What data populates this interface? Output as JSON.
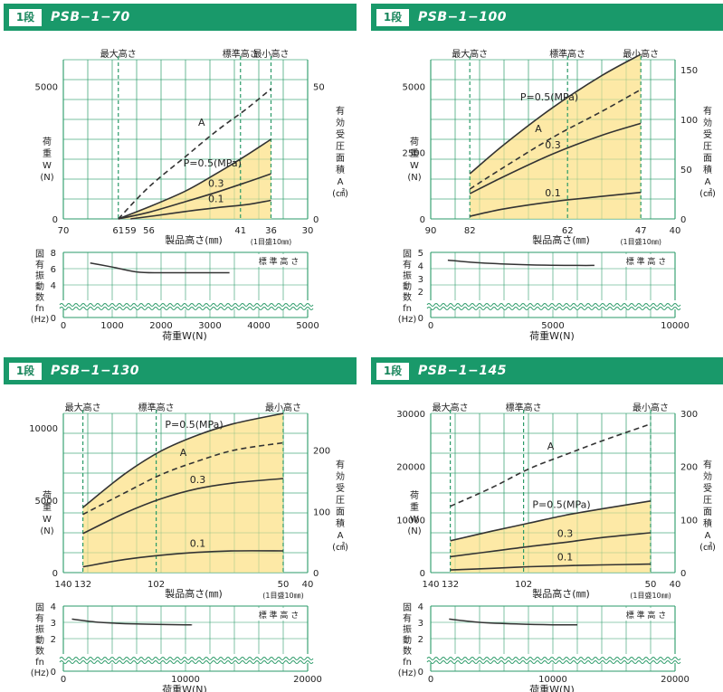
{
  "common": {
    "stage_label": "1段",
    "markers": [
      "最大高さ",
      "標準高さ",
      "最小高さ"
    ],
    "main_y_left_label": [
      "荷",
      "重",
      "W",
      "(N)"
    ],
    "main_y_right_label": [
      "有",
      "効",
      "受",
      "圧",
      "面",
      "積",
      "A",
      "(㎠)"
    ],
    "x_main_label": "製品高さ(㎜)",
    "x_main_note": "(1目盛10㎜)",
    "freq_y_label": [
      "固",
      "有",
      "振",
      "動",
      "数",
      "fn",
      "(Hz)"
    ],
    "freq_std_label": "標 準 高 さ",
    "freq_x_label": "荷重W(N)",
    "curve_labels": {
      "p05": "P=0.5(MPa)",
      "area": "A",
      "p03": "0.3",
      "p01": "0.1"
    }
  },
  "colors": {
    "header": "#19996a",
    "grid": "#2a9a68",
    "fill": "#fde9a6",
    "curve": "#333333",
    "marker": "#2a9a68"
  },
  "chart_data": [
    {
      "type": "line",
      "title": "PSB−1−70",
      "x_axis": {
        "left_label": "70",
        "max_label": "61",
        "marks": [
          "59",
          "56"
        ],
        "std_label": "41",
        "min_label": "36",
        "right_label": "30",
        "max_height": 61,
        "std_height": 41,
        "min_height": 36,
        "range": [
          70,
          30
        ]
      },
      "y_left": {
        "range": [
          0,
          6000
        ],
        "ticks": [
          0,
          5000
        ]
      },
      "y_right": {
        "range": [
          0,
          60
        ],
        "ticks": [
          0,
          50
        ]
      },
      "series": [
        {
          "name": "P=0.5(MPa)",
          "points": [
            [
              61,
              0
            ],
            [
              56,
              450
            ],
            [
              50,
              1050
            ],
            [
              45,
              1700
            ],
            [
              40,
              2400
            ],
            [
              36,
              3000
            ]
          ]
        },
        {
          "name": "0.3",
          "points": [
            [
              61,
              0
            ],
            [
              56,
              250
            ],
            [
              50,
              650
            ],
            [
              45,
              1000
            ],
            [
              40,
              1380
            ],
            [
              36,
              1700
            ]
          ]
        },
        {
          "name": "0.1",
          "points": [
            [
              59,
              0
            ],
            [
              55,
              120
            ],
            [
              50,
              280
            ],
            [
              45,
              420
            ],
            [
              40,
              540
            ],
            [
              36,
              700
            ]
          ]
        },
        {
          "name": "A",
          "dashed": true,
          "points": [
            [
              61,
              0
            ],
            [
              56,
              12
            ],
            [
              50,
              23.5
            ],
            [
              45,
              33
            ],
            [
              40,
              41.5
            ],
            [
              36,
              49
            ]
          ]
        }
      ],
      "freq": {
        "x_range": [
          0,
          5000
        ],
        "x_ticks": [
          0,
          1000,
          2000,
          3000,
          4000,
          5000
        ],
        "y_range": [
          0,
          8
        ],
        "y_ticks": [
          0,
          4,
          6,
          8
        ],
        "curve": [
          [
            550,
            6.7
          ],
          [
            1000,
            6.2
          ],
          [
            1500,
            5.6
          ],
          [
            2000,
            5.5
          ],
          [
            3000,
            5.5
          ],
          [
            3400,
            5.5
          ]
        ]
      }
    },
    {
      "type": "line",
      "title": "PSB−1−100",
      "x_axis": {
        "left_label": "90",
        "max_label": "82",
        "marks": [],
        "std_label": "62",
        "min_label": "47",
        "right_label": "40",
        "max_height": 82,
        "std_height": 62,
        "min_height": 47,
        "range": [
          90,
          40
        ]
      },
      "y_left": {
        "range": [
          0,
          6000
        ],
        "ticks": [
          0,
          2500,
          5000
        ]
      },
      "y_right": {
        "range": [
          0,
          160
        ],
        "ticks": [
          0,
          50,
          100,
          150
        ]
      },
      "series": [
        {
          "name": "P=0.5(MPa)",
          "points": [
            [
              82,
              1700
            ],
            [
              75,
              2800
            ],
            [
              65,
              4200
            ],
            [
              55,
              5400
            ],
            [
              47,
              6200
            ]
          ]
        },
        {
          "name": "0.3",
          "points": [
            [
              82,
              950
            ],
            [
              75,
              1600
            ],
            [
              65,
              2450
            ],
            [
              55,
              3150
            ],
            [
              47,
              3600
            ]
          ]
        },
        {
          "name": "0.1",
          "points": [
            [
              82,
              100
            ],
            [
              75,
              380
            ],
            [
              65,
              650
            ],
            [
              55,
              850
            ],
            [
              47,
              1000
            ]
          ]
        },
        {
          "name": "A",
          "dashed": true,
          "points": [
            [
              82,
              30
            ],
            [
              75,
              52
            ],
            [
              65,
              82
            ],
            [
              55,
              108
            ],
            [
              47,
              130
            ]
          ]
        }
      ],
      "freq": {
        "x_range": [
          0,
          10000
        ],
        "x_ticks": [
          0,
          5000,
          10000
        ],
        "y_range": [
          0,
          5
        ],
        "y_ticks": [
          0,
          2,
          3,
          4,
          5
        ],
        "curve": [
          [
            700,
            4.4
          ],
          [
            2000,
            4.2
          ],
          [
            4000,
            4.05
          ],
          [
            6000,
            4.0
          ],
          [
            6700,
            4.0
          ]
        ]
      }
    },
    {
      "type": "line",
      "title": "PSB−1−130",
      "x_axis": {
        "left_label": "140",
        "max_label": "132",
        "marks": [],
        "std_label": "102",
        "min_label": "50",
        "right_label": "40",
        "max_height": 132,
        "std_height": 102,
        "min_height": 50,
        "range": [
          140,
          40
        ]
      },
      "y_left": {
        "range": [
          0,
          11000
        ],
        "ticks": [
          0,
          5000,
          10000
        ]
      },
      "y_right": {
        "range": [
          0,
          260
        ],
        "ticks": [
          0,
          100,
          200
        ]
      },
      "series": [
        {
          "name": "P=0.5(MPa)",
          "points": [
            [
              132,
              4500
            ],
            [
              115,
              6800
            ],
            [
              100,
              8400
            ],
            [
              85,
              9500
            ],
            [
              70,
              10300
            ],
            [
              50,
              11000
            ]
          ]
        },
        {
          "name": "0.3",
          "points": [
            [
              132,
              2700
            ],
            [
              115,
              4100
            ],
            [
              100,
              5100
            ],
            [
              85,
              5800
            ],
            [
              70,
              6200
            ],
            [
              50,
              6500
            ]
          ]
        },
        {
          "name": "0.1",
          "points": [
            [
              132,
              400
            ],
            [
              115,
              900
            ],
            [
              100,
              1200
            ],
            [
              85,
              1400
            ],
            [
              70,
              1500
            ],
            [
              50,
              1500
            ]
          ]
        },
        {
          "name": "A",
          "dashed": true,
          "points": [
            [
              132,
              95
            ],
            [
              115,
              130
            ],
            [
              100,
              160
            ],
            [
              85,
              182
            ],
            [
              70,
              200
            ],
            [
              50,
              212
            ]
          ]
        }
      ],
      "freq": {
        "x_range": [
          0,
          20000
        ],
        "x_ticks": [
          0,
          10000,
          20000
        ],
        "y_range": [
          0,
          4
        ],
        "y_ticks": [
          0,
          2,
          3,
          4
        ],
        "curve": [
          [
            700,
            3.2
          ],
          [
            3000,
            3.0
          ],
          [
            6000,
            2.9
          ],
          [
            10000,
            2.85
          ],
          [
            10500,
            2.85
          ]
        ]
      }
    },
    {
      "type": "line",
      "title": "PSB−1−145",
      "x_axis": {
        "left_label": "140",
        "max_label": "132",
        "marks": [],
        "std_label": "102",
        "min_label": "50",
        "right_label": "40",
        "max_height": 132,
        "std_height": 102,
        "min_height": 50,
        "range": [
          140,
          40
        ]
      },
      "y_left": {
        "range": [
          0,
          30000
        ],
        "ticks": [
          0,
          10000,
          20000,
          30000
        ]
      },
      "y_right": {
        "range": [
          0,
          300
        ],
        "ticks": [
          0,
          100,
          200,
          300
        ]
      },
      "series": [
        {
          "name": "P=0.5(MPa)",
          "points": [
            [
              132,
              6000
            ],
            [
              115,
              7800
            ],
            [
              100,
              9300
            ],
            [
              85,
              10800
            ],
            [
              70,
              12000
            ],
            [
              50,
              13500
            ]
          ]
        },
        {
          "name": "0.3",
          "points": [
            [
              132,
              3000
            ],
            [
              115,
              4000
            ],
            [
              100,
              4900
            ],
            [
              85,
              5700
            ],
            [
              70,
              6600
            ],
            [
              50,
              7500
            ]
          ]
        },
        {
          "name": "0.1",
          "points": [
            [
              132,
              500
            ],
            [
              115,
              800
            ],
            [
              100,
              1100
            ],
            [
              85,
              1300
            ],
            [
              70,
              1450
            ],
            [
              50,
              1600
            ]
          ]
        },
        {
          "name": "A",
          "dashed": true,
          "points": [
            [
              132,
              125
            ],
            [
              115,
              160
            ],
            [
              100,
              195
            ],
            [
              85,
              222
            ],
            [
              70,
              248
            ],
            [
              50,
              280
            ]
          ]
        }
      ],
      "freq": {
        "x_range": [
          0,
          20000
        ],
        "x_ticks": [
          0,
          10000,
          20000
        ],
        "y_range": [
          0,
          4
        ],
        "y_ticks": [
          0,
          2,
          3,
          4
        ],
        "curve": [
          [
            1500,
            3.2
          ],
          [
            4000,
            3.0
          ],
          [
            7000,
            2.9
          ],
          [
            10000,
            2.85
          ],
          [
            12000,
            2.85
          ]
        ]
      }
    }
  ]
}
